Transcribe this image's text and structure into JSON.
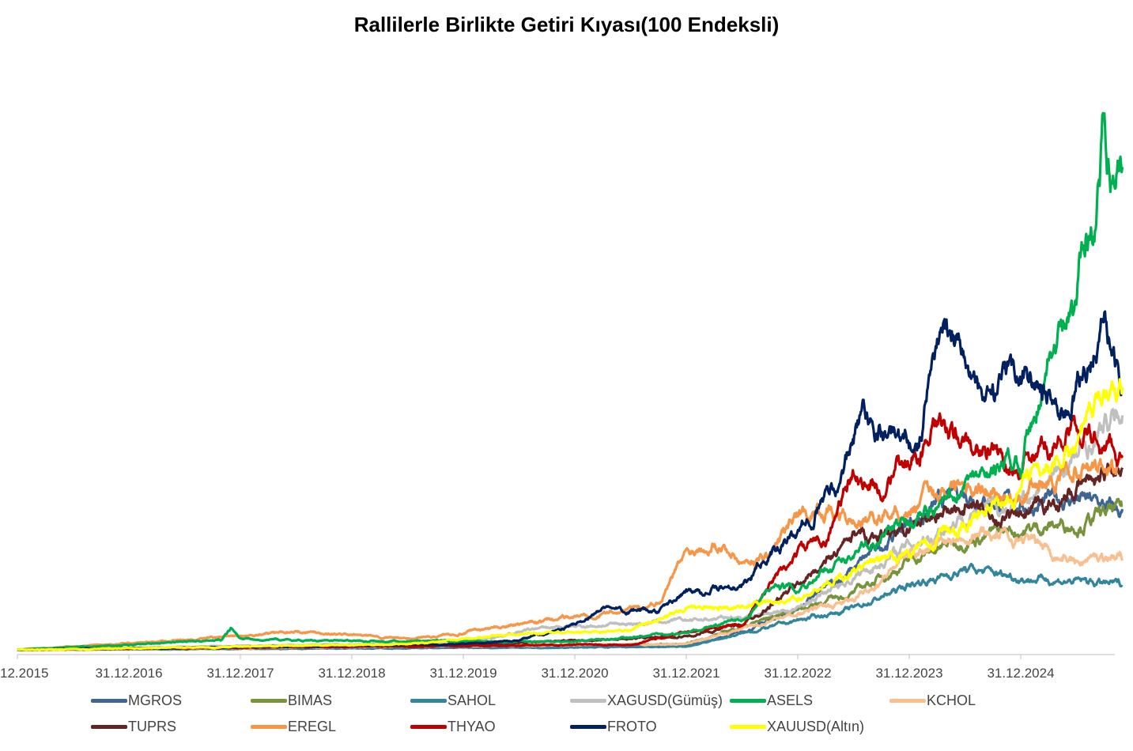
{
  "chart_data": {
    "type": "line",
    "title": "Rallilerle Birlikte Getiri Kıyası(100 Endeksli)",
    "xlabel": "",
    "ylabel": "",
    "x_range": [
      "2015-12-31",
      "2025-11"
    ],
    "ylim": [
      0,
      12700
    ],
    "grid": false,
    "legend_position": "bottom",
    "x_ticks": [
      "12.2015",
      "31.12.2016",
      "31.12.2017",
      "31.12.2018",
      "31.12.2019",
      "31.12.2020",
      "31.12.2021",
      "31.12.2022",
      "31.12.2023",
      "31.12.2024"
    ],
    "series": [
      {
        "name": "MGROS",
        "color": "#3e6593",
        "points": [
          [
            "2015-12",
            100
          ],
          [
            "2021-12",
            170
          ],
          [
            "2022-06",
            460
          ],
          [
            "2022-12",
            960
          ],
          [
            "2023-06",
            1780
          ],
          [
            "2023-12",
            2770
          ],
          [
            "2024-06",
            3430
          ],
          [
            "2024-12",
            3100
          ],
          [
            "2025-06",
            3270
          ],
          [
            "2025-11",
            2940
          ]
        ]
      },
      {
        "name": "BIMAS",
        "color": "#77933c",
        "points": [
          [
            "2015-12",
            100
          ],
          [
            "2021-12",
            215
          ],
          [
            "2022-12",
            960
          ],
          [
            "2023-06",
            1290
          ],
          [
            "2023-12",
            1950
          ],
          [
            "2024-06",
            2440
          ],
          [
            "2024-12",
            2610
          ],
          [
            "2025-06",
            2770
          ],
          [
            "2025-11",
            3020
          ]
        ]
      },
      {
        "name": "SAHOL",
        "color": "#31859c",
        "points": [
          [
            "2015-12",
            100
          ],
          [
            "2021-12",
            165
          ],
          [
            "2022-12",
            710
          ],
          [
            "2023-06",
            960
          ],
          [
            "2023-12",
            1450
          ],
          [
            "2024-06",
            1780
          ],
          [
            "2024-12",
            1620
          ],
          [
            "2025-06",
            1530
          ],
          [
            "2025-11",
            1450
          ]
        ]
      },
      {
        "name": "XAGUSD(Gümüş)",
        "color": "#bfbfbf",
        "points": [
          [
            "2015-12",
            100
          ],
          [
            "2019-12",
            250
          ],
          [
            "2020-08",
            545
          ],
          [
            "2021-12",
            710
          ],
          [
            "2022-06",
            790
          ],
          [
            "2022-12",
            960
          ],
          [
            "2023-06",
            1620
          ],
          [
            "2023-12",
            2280
          ],
          [
            "2024-06",
            2940
          ],
          [
            "2024-12",
            3100
          ],
          [
            "2025-06",
            4090
          ],
          [
            "2025-11",
            5080
          ]
        ]
      },
      {
        "name": "KCHOL",
        "color": "#f9bf8f",
        "points": [
          [
            "2015-12",
            100
          ],
          [
            "2021-12",
            215
          ],
          [
            "2022-12",
            875
          ],
          [
            "2023-06",
            1120
          ],
          [
            "2023-12",
            2110
          ],
          [
            "2024-06",
            2610
          ],
          [
            "2024-12",
            2440
          ],
          [
            "2025-06",
            1950
          ],
          [
            "2025-11",
            2110
          ]
        ]
      },
      {
        "name": "TUPRS",
        "color": "#632423",
        "points": [
          [
            "2015-12",
            100
          ],
          [
            "2019-12",
            200
          ],
          [
            "2021-12",
            380
          ],
          [
            "2022-06",
            630
          ],
          [
            "2022-12",
            1450
          ],
          [
            "2023-06",
            2440
          ],
          [
            "2023-12",
            2610
          ],
          [
            "2024-06",
            3100
          ],
          [
            "2024-12",
            2770
          ],
          [
            "2025-06",
            3430
          ],
          [
            "2025-11",
            4090
          ]
        ]
      },
      {
        "name": "EREGL",
        "color": "#f79646",
        "points": [
          [
            "2015-12",
            100
          ],
          [
            "2017-12",
            380
          ],
          [
            "2018-06",
            495
          ],
          [
            "2019-06",
            330
          ],
          [
            "2019-12",
            460
          ],
          [
            "2020-12",
            790
          ],
          [
            "2021-06",
            960
          ],
          [
            "2021-09",
            1120
          ],
          [
            "2021-12",
            2110
          ],
          [
            "2022-03",
            2440
          ],
          [
            "2022-06",
            1950
          ],
          [
            "2022-09",
            2110
          ],
          [
            "2022-12",
            2940
          ],
          [
            "2023-03",
            3100
          ],
          [
            "2023-06",
            2770
          ],
          [
            "2023-12",
            3100
          ],
          [
            "2024-06",
            3760
          ],
          [
            "2024-12",
            3270
          ],
          [
            "2025-06",
            3930
          ],
          [
            "2025-11",
            3760
          ]
        ]
      },
      {
        "name": "THYAO",
        "color": "#c00000",
        "points": [
          [
            "2015-12",
            100
          ],
          [
            "2021-06",
            215
          ],
          [
            "2021-12",
            460
          ],
          [
            "2022-06",
            630
          ],
          [
            "2022-09",
            1450
          ],
          [
            "2022-12",
            2110
          ],
          [
            "2023-03",
            2440
          ],
          [
            "2023-06",
            3760
          ],
          [
            "2023-09",
            3430
          ],
          [
            "2023-12",
            4090
          ],
          [
            "2024-03",
            4670
          ],
          [
            "2024-06",
            4420
          ],
          [
            "2024-12",
            3930
          ],
          [
            "2025-06",
            4750
          ],
          [
            "2025-11",
            4090
          ]
        ]
      },
      {
        "name": "ASELS",
        "color": "#00b050",
        "points": [
          [
            "2015-12",
            100
          ],
          [
            "2017-10",
            300
          ],
          [
            "2017-11",
            545
          ],
          [
            "2017-12",
            330
          ],
          [
            "2018-06",
            300
          ],
          [
            "2020-12",
            265
          ],
          [
            "2021-12",
            460
          ],
          [
            "2022-06",
            710
          ],
          [
            "2022-09",
            1370
          ],
          [
            "2022-12",
            1370
          ],
          [
            "2023-06",
            2110
          ],
          [
            "2023-12",
            2770
          ],
          [
            "2024-06",
            3430
          ],
          [
            "2024-12",
            4090
          ],
          [
            "2025-03",
            6240
          ],
          [
            "2025-06",
            7060
          ],
          [
            "2025-07",
            9040
          ],
          [
            "2025-08",
            9370
          ],
          [
            "2025-09",
            11020
          ],
          [
            "2025-10",
            10030
          ],
          [
            "2025-11",
            10530
          ]
        ]
      },
      {
        "name": "FROTO",
        "color": "#002060",
        "points": [
          [
            "2015-12",
            100
          ],
          [
            "2019-12",
            215
          ],
          [
            "2020-06",
            300
          ],
          [
            "2020-12",
            630
          ],
          [
            "2021-03",
            960
          ],
          [
            "2021-09",
            875
          ],
          [
            "2021-12",
            1290
          ],
          [
            "2022-06",
            1450
          ],
          [
            "2022-09",
            2100
          ],
          [
            "2022-12",
            2440
          ],
          [
            "2023-02",
            3100
          ],
          [
            "2023-05",
            3760
          ],
          [
            "2023-07",
            5080
          ],
          [
            "2023-10",
            4670
          ],
          [
            "2024-01",
            4420
          ],
          [
            "2024-03",
            6570
          ],
          [
            "2024-05",
            6900
          ],
          [
            "2024-08",
            5080
          ],
          [
            "2024-12",
            5900
          ],
          [
            "2025-05",
            5080
          ],
          [
            "2025-09",
            6900
          ],
          [
            "2025-11",
            5740
          ]
        ]
      },
      {
        "name": "XAUUSD(Altın)",
        "color": "#ffff00",
        "points": [
          [
            "2015-12",
            100
          ],
          [
            "2019-06",
            215
          ],
          [
            "2020-08",
            460
          ],
          [
            "2020-12",
            460
          ],
          [
            "2021-06",
            545
          ],
          [
            "2021-12",
            960
          ],
          [
            "2022-06",
            1040
          ],
          [
            "2022-12",
            1155
          ],
          [
            "2023-06",
            1780
          ],
          [
            "2023-12",
            2110
          ],
          [
            "2024-06",
            2770
          ],
          [
            "2024-12",
            3430
          ],
          [
            "2025-06",
            4420
          ],
          [
            "2025-11",
            5900
          ]
        ]
      }
    ]
  }
}
